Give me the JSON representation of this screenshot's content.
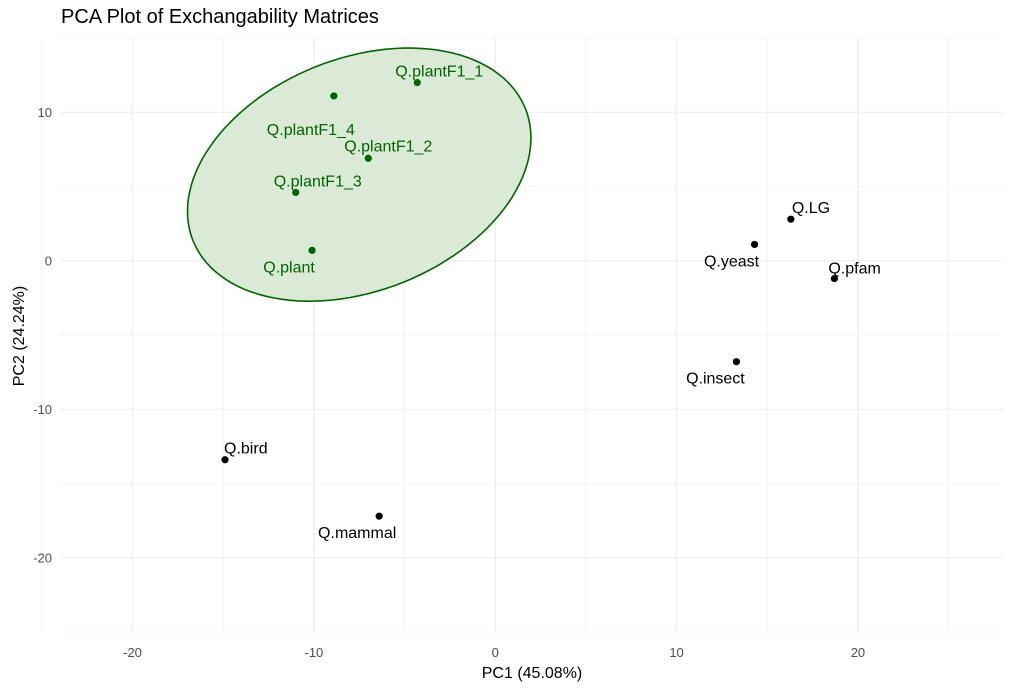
{
  "chart_data": {
    "type": "scatter",
    "title": "PCA Plot of Exchangability Matrices",
    "xlabel": "PC1 (45.08%)",
    "ylabel": "PC2 (24.24%)",
    "xlim": [
      -24,
      28
    ],
    "ylim": [
      -25,
      15
    ],
    "x_ticks": [
      -20,
      -10,
      0,
      10,
      20
    ],
    "x_tick_labels": [
      "-20",
      "-10",
      "0",
      "10",
      "20"
    ],
    "y_ticks": [
      -20,
      -10,
      0,
      10
    ],
    "y_tick_labels": [
      "-20",
      "-10",
      "0",
      "10"
    ],
    "grid": true,
    "points": [
      {
        "label": "Q.plantF1_1",
        "x": -4.3,
        "y": 12.0,
        "group": "plant"
      },
      {
        "label": "Q.plantF1_4",
        "x": -8.9,
        "y": 11.1,
        "group": "plant"
      },
      {
        "label": "Q.plantF1_2",
        "x": -7.0,
        "y": 6.9,
        "group": "plant"
      },
      {
        "label": "Q.plantF1_3",
        "x": -11.0,
        "y": 4.6,
        "group": "plant"
      },
      {
        "label": "Q.plant",
        "x": -10.1,
        "y": 0.7,
        "group": "plant"
      },
      {
        "label": "Q.LG",
        "x": 16.3,
        "y": 2.8,
        "group": "other"
      },
      {
        "label": "Q.yeast",
        "x": 14.3,
        "y": 1.1,
        "group": "other"
      },
      {
        "label": "Q.pfam",
        "x": 18.7,
        "y": -1.2,
        "group": "other"
      },
      {
        "label": "Q.insect",
        "x": 13.3,
        "y": -6.8,
        "group": "other"
      },
      {
        "label": "Q.bird",
        "x": -14.9,
        "y": -13.4,
        "group": "other"
      },
      {
        "label": "Q.mammal",
        "x": -6.4,
        "y": -17.2,
        "group": "other"
      }
    ],
    "ellipse": {
      "group": "plant",
      "center_x": -7.5,
      "center_y": 5.8,
      "semi_major": 10.3,
      "semi_minor": 7.5,
      "angle_deg": 35
    },
    "colors": {
      "plant": "#006400",
      "other": "#000000",
      "ellipse_fill": "#d9e8d5",
      "grid": "#ebebeb"
    }
  }
}
